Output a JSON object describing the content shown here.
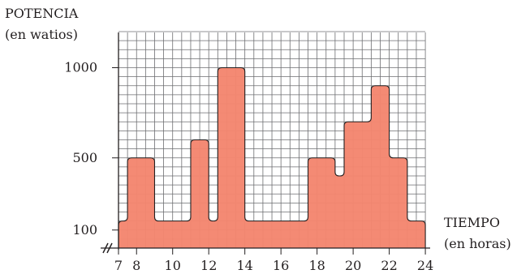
{
  "chart_data": {
    "type": "area",
    "title": "",
    "ylabel_line1": "POTENCIA",
    "ylabel_line2": "(en watios)",
    "xlabel_line1": "TIEMPO",
    "xlabel_line2": "(en horas)",
    "xlim": [
      7,
      24
    ],
    "ylim": [
      0,
      1200
    ],
    "x_ticks": [
      "7",
      "8",
      "10",
      "12",
      "14",
      "16",
      "18",
      "20",
      "22",
      "24"
    ],
    "y_ticks": [
      "100",
      "500",
      "1000"
    ],
    "axis_break_marks": "//",
    "grid": true,
    "fill_color": "#f4866f",
    "series": [
      {
        "steps": [
          {
            "start": 7,
            "end": 7.5,
            "value": 150
          },
          {
            "start": 7.5,
            "end": 9,
            "value": 500
          },
          {
            "start": 9,
            "end": 11,
            "value": 150
          },
          {
            "start": 11,
            "end": 12,
            "value": 600
          },
          {
            "start": 12,
            "end": 12.5,
            "value": 150
          },
          {
            "start": 12.5,
            "end": 14,
            "value": 1000
          },
          {
            "start": 14,
            "end": 17.5,
            "value": 150
          },
          {
            "start": 17.5,
            "end": 19,
            "value": 500
          },
          {
            "start": 19,
            "end": 19.5,
            "value": 400
          },
          {
            "start": 19.5,
            "end": 21,
            "value": 700
          },
          {
            "start": 21,
            "end": 22,
            "value": 900
          },
          {
            "start": 22,
            "end": 23,
            "value": 500
          },
          {
            "start": 23,
            "end": 24,
            "value": 150
          }
        ]
      }
    ]
  }
}
